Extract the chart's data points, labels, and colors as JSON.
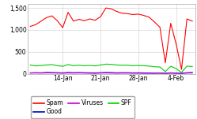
{
  "background_color": "#ffffff",
  "plot_bg_color": "#ffffff",
  "grid_color": "#cccccc",
  "spam_color": "#ff0000",
  "good_color": "#0000cc",
  "viruses_color": "#cc00cc",
  "spf_color": "#00cc00",
  "spam": [
    1080,
    1120,
    1200,
    1280,
    1320,
    1210,
    1050,
    1400,
    1200,
    1240,
    1210,
    1250,
    1220,
    1300,
    1500,
    1480,
    1420,
    1380,
    1370,
    1350,
    1360,
    1330,
    1290,
    1180,
    1060,
    250,
    1150,
    680,
    100,
    1250,
    1200
  ],
  "good": [
    20,
    25,
    22,
    30,
    28,
    25,
    20,
    30,
    25,
    28,
    25,
    22,
    20,
    25,
    30,
    28,
    22,
    25,
    25,
    20,
    22,
    20,
    18,
    15,
    18,
    12,
    20,
    15,
    10,
    25,
    30
  ],
  "viruses": [
    15,
    18,
    15,
    20,
    18,
    15,
    12,
    18,
    15,
    18,
    15,
    12,
    10,
    15,
    18,
    15,
    12,
    15,
    15,
    12,
    12,
    10,
    10,
    10,
    12,
    8,
    12,
    10,
    8,
    15,
    18
  ],
  "spf": [
    200,
    180,
    190,
    200,
    210,
    185,
    170,
    210,
    185,
    195,
    185,
    190,
    180,
    200,
    220,
    215,
    200,
    195,
    195,
    185,
    190,
    185,
    175,
    160,
    155,
    50,
    170,
    120,
    30,
    175,
    165
  ],
  "ylim": [
    0,
    1600
  ],
  "yticks": [
    0,
    500,
    1000,
    1500
  ],
  "ytick_labels": [
    "0",
    "500",
    "1,000",
    "1,500"
  ],
  "xtick_pos": [
    6,
    13,
    20,
    27
  ],
  "xtick_labels": [
    "14-Jan",
    "21-Jan",
    "28-Jan",
    "4-Feb"
  ]
}
